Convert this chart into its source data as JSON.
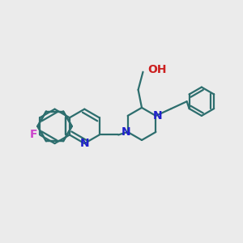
{
  "bg_color": "#ebebeb",
  "bond_color": "#2d6e6e",
  "N_color": "#2020cc",
  "O_color": "#cc2020",
  "F_color": "#cc44cc",
  "line_width": 1.6,
  "font_size": 10,
  "fig_size": [
    3.0,
    3.0
  ],
  "dpi": 100,
  "xlim": [
    0,
    10
  ],
  "ylim": [
    0,
    10
  ],
  "ring_r": 0.72,
  "ph_r": 0.6,
  "inner_scale": 0.16
}
